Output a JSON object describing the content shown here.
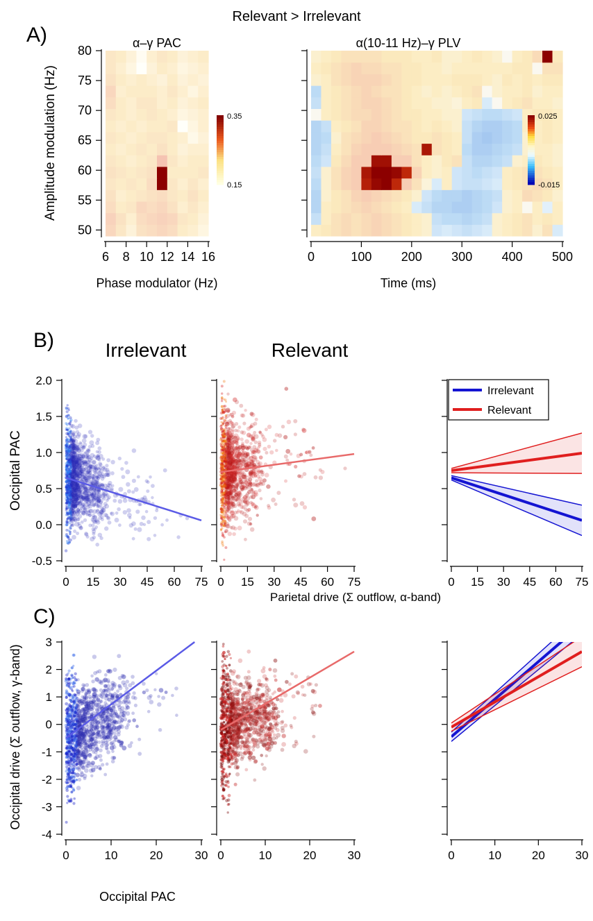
{
  "figure": {
    "title": "Relevant > Irrelevant",
    "panel_a_label": "A)",
    "panel_b_label": "B)",
    "panel_c_label": "C)",
    "panel_b_shared_xlabel": "Parietal drive (Σ outflow, α-band)"
  },
  "chart_data": [
    {
      "id": "a1",
      "type": "heatmap",
      "title": "α–γ PAC",
      "xlabel": "Phase modulator (Hz)",
      "ylabel": "Amplitude modulation (Hz)",
      "xlim": [
        6,
        16
      ],
      "ylim": [
        49,
        80
      ],
      "xticks": [
        6,
        8,
        10,
        12,
        14,
        16
      ],
      "yticks": [
        50,
        55,
        60,
        65,
        70,
        75,
        80
      ],
      "colorbar": {
        "min_label": "0.15",
        "max_label": "0.35",
        "colormap": "yellow-red"
      },
      "rows_y": [
        50,
        52,
        54,
        56,
        58,
        60,
        62,
        64,
        66,
        68,
        70,
        72,
        74,
        76,
        78,
        80
      ],
      "cols_x": [
        6,
        7,
        8,
        9,
        10,
        11,
        12,
        13,
        14,
        15
      ],
      "cells": [
        [
          0.25,
          0.22,
          0.19,
          0.23,
          0.24,
          0.25,
          0.24,
          0.21,
          0.2,
          0.18
        ],
        [
          0.26,
          0.23,
          0.2,
          0.24,
          0.25,
          0.26,
          0.25,
          0.22,
          0.21,
          0.19
        ],
        [
          0.24,
          0.21,
          0.22,
          0.25,
          0.24,
          0.25,
          0.23,
          0.2,
          0.22,
          0.2
        ],
        [
          0.23,
          0.2,
          0.21,
          0.22,
          0.23,
          0.24,
          0.22,
          0.21,
          0.23,
          0.21
        ],
        [
          0.22,
          0.21,
          0.22,
          0.21,
          0.24,
          0.35,
          0.22,
          0.2,
          0.22,
          0.2
        ],
        [
          0.23,
          0.22,
          0.21,
          0.22,
          0.23,
          0.35,
          0.21,
          0.21,
          0.21,
          0.22
        ],
        [
          0.22,
          0.21,
          0.2,
          0.21,
          0.22,
          0.28,
          0.22,
          0.2,
          0.21,
          0.21
        ],
        [
          0.21,
          0.2,
          0.21,
          0.22,
          0.21,
          0.23,
          0.21,
          0.19,
          0.2,
          0.2
        ],
        [
          0.22,
          0.21,
          0.2,
          0.21,
          0.22,
          0.22,
          0.21,
          0.2,
          0.17,
          0.19
        ],
        [
          0.21,
          0.2,
          0.21,
          0.2,
          0.21,
          0.21,
          0.22,
          0.15,
          0.18,
          0.2
        ],
        [
          0.22,
          0.21,
          0.2,
          0.21,
          0.22,
          0.21,
          0.2,
          0.18,
          0.19,
          0.2
        ],
        [
          0.24,
          0.21,
          0.2,
          0.22,
          0.22,
          0.2,
          0.21,
          0.19,
          0.2,
          0.21
        ],
        [
          0.25,
          0.2,
          0.21,
          0.21,
          0.21,
          0.2,
          0.22,
          0.2,
          0.18,
          0.2
        ],
        [
          0.23,
          0.21,
          0.2,
          0.21,
          0.2,
          0.19,
          0.21,
          0.19,
          0.2,
          0.19
        ],
        [
          0.22,
          0.2,
          0.18,
          0.15,
          0.19,
          0.21,
          0.2,
          0.18,
          0.19,
          0.2
        ],
        [
          0.22,
          0.21,
          0.19,
          0.16,
          0.2,
          0.22,
          0.21,
          0.19,
          0.2,
          0.21
        ]
      ]
    },
    {
      "id": "a2",
      "type": "heatmap",
      "title": "α(10-11 Hz)–γ PLV",
      "xlabel": "Time (ms)",
      "ylabel": "",
      "xlim": [
        0,
        500
      ],
      "ylim": [
        49,
        80
      ],
      "xticks": [
        0,
        100,
        200,
        300,
        400,
        500
      ],
      "yticks": [
        50,
        55,
        60,
        65,
        70,
        75,
        80
      ],
      "colorbar": {
        "min_label": "-0.015",
        "max_label": "0.025",
        "colormap": "blue-cyan-yellow-red"
      },
      "rows_y": [
        50,
        52,
        54,
        56,
        58,
        60,
        62,
        64,
        66,
        68,
        70,
        72,
        74,
        76,
        78,
        80
      ],
      "cols_x": [
        0,
        20,
        40,
        60,
        80,
        100,
        120,
        140,
        160,
        180,
        200,
        220,
        240,
        260,
        280,
        300,
        320,
        340,
        360,
        380,
        400,
        420,
        440,
        460,
        480
      ],
      "cells": [
        [
          0.004,
          0.005,
          0.006,
          0.007,
          0.006,
          0.007,
          0.008,
          0.007,
          0.006,
          0.005,
          0.004,
          0.003,
          -0.003,
          -0.002,
          -0.003,
          -0.004,
          -0.003,
          -0.002,
          0.003,
          0.004,
          0.005,
          0.006,
          0.003,
          0.006,
          -0.002
        ],
        [
          -0.004,
          0.004,
          0.006,
          0.007,
          0.006,
          0.007,
          0.008,
          0.007,
          0.006,
          0.005,
          0.004,
          0.003,
          -0.004,
          -0.005,
          -0.005,
          -0.006,
          -0.005,
          -0.004,
          0.003,
          0.004,
          0.005,
          0.006,
          0.004,
          0.005,
          0.004
        ],
        [
          -0.006,
          0.004,
          0.005,
          0.006,
          0.007,
          0.008,
          0.007,
          0.006,
          0.005,
          0.004,
          -0.002,
          -0.004,
          -0.006,
          -0.006,
          -0.007,
          -0.007,
          -0.006,
          -0.005,
          -0.003,
          0.003,
          0.004,
          0.0,
          0.004,
          -0.001,
          0.004
        ],
        [
          -0.006,
          0.003,
          0.005,
          0.006,
          0.008,
          0.009,
          0.008,
          0.007,
          0.006,
          0.005,
          0.003,
          -0.003,
          -0.005,
          -0.006,
          -0.006,
          -0.007,
          -0.006,
          -0.005,
          -0.004,
          0.003,
          0.004,
          0.007,
          0.006,
          0.005,
          0.003
        ],
        [
          -0.005,
          0.003,
          0.006,
          0.008,
          0.012,
          0.021,
          0.024,
          0.025,
          0.02,
          0.01,
          0.006,
          0.002,
          -0.002,
          0.004,
          -0.003,
          -0.004,
          -0.004,
          -0.003,
          -0.002,
          0.004,
          0.005,
          0.006,
          0.007,
          0.006,
          0.004
        ],
        [
          -0.004,
          0.003,
          0.006,
          0.008,
          0.012,
          0.022,
          0.025,
          0.025,
          0.024,
          0.02,
          0.008,
          0.004,
          0.003,
          0.004,
          -0.003,
          -0.004,
          -0.005,
          -0.004,
          -0.003,
          0.004,
          0.005,
          0.006,
          0.006,
          0.005,
          0.004
        ],
        [
          -0.005,
          -0.003,
          0.005,
          0.007,
          0.009,
          0.012,
          0.023,
          0.023,
          0.012,
          0.009,
          0.006,
          0.004,
          0.003,
          0.005,
          0.006,
          -0.004,
          -0.006,
          -0.006,
          -0.005,
          -0.004,
          0.003,
          0.004,
          0.005,
          0.004,
          0.003
        ],
        [
          -0.006,
          -0.004,
          0.004,
          0.006,
          0.008,
          0.009,
          0.01,
          0.009,
          0.008,
          0.007,
          0.006,
          0.022,
          0.006,
          0.005,
          0.004,
          -0.005,
          -0.007,
          -0.007,
          -0.006,
          -0.005,
          -0.004,
          0.003,
          0.004,
          0.004,
          0.003
        ],
        [
          -0.006,
          -0.005,
          0.003,
          0.006,
          0.007,
          0.008,
          0.009,
          0.008,
          0.007,
          0.006,
          0.005,
          0.005,
          0.006,
          0.005,
          0.004,
          -0.004,
          -0.007,
          -0.008,
          -0.007,
          -0.006,
          -0.005,
          0.003,
          0.004,
          0.005,
          0.004
        ],
        [
          -0.006,
          -0.004,
          0.004,
          0.005,
          0.006,
          0.008,
          0.008,
          0.007,
          0.006,
          0.006,
          0.005,
          0.004,
          0.005,
          0.004,
          0.003,
          -0.004,
          -0.006,
          -0.007,
          -0.007,
          -0.006,
          -0.005,
          0.004,
          0.004,
          0.005,
          0.004
        ],
        [
          0.0,
          0.004,
          0.005,
          0.006,
          0.007,
          0.007,
          0.008,
          0.007,
          0.006,
          0.005,
          0.005,
          0.004,
          0.004,
          0.003,
          0.003,
          -0.003,
          -0.004,
          -0.005,
          -0.005,
          -0.004,
          -0.003,
          0.004,
          0.005,
          0.005,
          0.004
        ],
        [
          -0.004,
          0.004,
          0.005,
          0.006,
          0.007,
          0.008,
          0.008,
          0.007,
          0.006,
          0.005,
          0.004,
          0.004,
          0.003,
          0.003,
          0.002,
          0.004,
          0.005,
          -0.002,
          0.0,
          0.004,
          0.005,
          0.006,
          0.004,
          0.004,
          0.003
        ],
        [
          -0.005,
          0.004,
          0.005,
          0.006,
          0.007,
          0.008,
          0.007,
          0.006,
          0.006,
          0.005,
          0.004,
          0.003,
          0.004,
          0.003,
          0.004,
          0.005,
          0.006,
          0.0,
          0.003,
          0.004,
          0.004,
          0.005,
          0.003,
          0.004,
          0.004
        ],
        [
          0.003,
          0.004,
          0.006,
          0.007,
          0.008,
          0.008,
          0.008,
          0.007,
          0.006,
          0.005,
          0.005,
          0.004,
          0.004,
          0.004,
          0.005,
          0.005,
          0.005,
          0.004,
          0.003,
          0.005,
          0.004,
          0.005,
          0.004,
          0.005,
          0.005
        ],
        [
          0.004,
          0.005,
          0.006,
          0.007,
          0.008,
          0.007,
          0.007,
          0.006,
          0.006,
          0.005,
          0.005,
          0.004,
          0.004,
          0.003,
          0.004,
          0.004,
          0.004,
          0.004,
          0.004,
          0.004,
          0.005,
          0.005,
          0.0,
          0.006,
          0.006
        ],
        [
          0.003,
          0.004,
          0.005,
          0.006,
          0.006,
          0.006,
          0.006,
          0.005,
          0.005,
          0.005,
          0.004,
          0.004,
          0.005,
          0.003,
          0.003,
          0.004,
          0.005,
          0.004,
          0.003,
          0.0,
          0.004,
          0.005,
          0.007,
          0.025,
          0.005
        ]
      ]
    },
    {
      "id": "b1",
      "type": "scatter",
      "title": "Irrelevant",
      "ylabel": "Occipital PAC",
      "xlim": [
        0,
        75
      ],
      "ylim": [
        -0.5,
        2.0
      ],
      "xticks": [
        0,
        15,
        30,
        45,
        60,
        75
      ],
      "yticks": [
        -0.5,
        0.0,
        0.5,
        1.0,
        1.5,
        2.0
      ],
      "ytick_labels": [
        "-0.5",
        "0.0",
        "0.5",
        "1.0",
        "1.5",
        "2.0"
      ],
      "point_color": "#1f2fd6",
      "point_count_approx": 2000,
      "point_mean_y": 0.6,
      "point_sd_y": 0.35,
      "fit_line": {
        "x": [
          0,
          75
        ],
        "y": [
          0.65,
          0.06
        ],
        "color": "#5a5ae6"
      }
    },
    {
      "id": "b2",
      "type": "scatter",
      "title": "Relevant",
      "xlim": [
        0,
        75
      ],
      "ylim": [
        -0.5,
        2.0
      ],
      "xticks": [
        0,
        15,
        30,
        45,
        60,
        75
      ],
      "point_color": "#d42020",
      "point_count_approx": 2000,
      "point_mean_y": 0.75,
      "point_sd_y": 0.38,
      "fit_line": {
        "x": [
          0,
          75
        ],
        "y": [
          0.73,
          0.98
        ],
        "color": "#e86a6a"
      }
    },
    {
      "id": "b3",
      "type": "line",
      "xlim": [
        0,
        75
      ],
      "ylim": [
        -0.5,
        2.0
      ],
      "xticks": [
        0,
        15,
        30,
        45,
        60,
        75
      ],
      "legend_placement": "top-left",
      "series": [
        {
          "name": "Irrelevant",
          "color": "#1414d2",
          "x": [
            0,
            75
          ],
          "y": [
            0.65,
            0.06
          ],
          "ci_low": [
            0.62,
            -0.15
          ],
          "ci_high": [
            0.68,
            0.27
          ]
        },
        {
          "name": "Relevant",
          "color": "#e01e1e",
          "x": [
            0,
            75
          ],
          "y": [
            0.75,
            0.99
          ],
          "ci_low": [
            0.72,
            0.71
          ],
          "ci_high": [
            0.78,
            1.27
          ]
        }
      ]
    },
    {
      "id": "c1",
      "type": "scatter",
      "xlabel": "Occipital PAC",
      "ylabel": "Occipital drive (Σ outflow, γ-band)",
      "xlim": [
        0,
        30
      ],
      "ylim": [
        -4,
        3
      ],
      "xticks": [
        0,
        10,
        20,
        30
      ],
      "yticks": [
        -4,
        -3,
        -2,
        -1,
        0,
        1,
        2,
        3
      ],
      "point_color": "#1f2fd6",
      "point_count_approx": 2000,
      "fit_line": {
        "x": [
          0,
          28.5
        ],
        "y": [
          -0.5,
          3.0
        ],
        "color": "#5a5ae6"
      }
    },
    {
      "id": "c2",
      "type": "scatter",
      "xlim": [
        0,
        30
      ],
      "ylim": [
        -4,
        3
      ],
      "xticks": [
        0,
        10,
        20,
        30
      ],
      "point_color": "#9a1414",
      "point_count_approx": 2000,
      "fit_line": {
        "x": [
          0,
          30
        ],
        "y": [
          -0.2,
          2.65
        ],
        "color": "#e86a6a"
      }
    },
    {
      "id": "c3",
      "type": "line",
      "xlim": [
        0,
        30
      ],
      "ylim": [
        -4,
        3
      ],
      "xticks": [
        0,
        10,
        20,
        30
      ],
      "series": [
        {
          "name": "Irrelevant",
          "color": "#1414d2",
          "x": [
            0,
            30
          ],
          "y": [
            -0.45,
            3.65
          ],
          "ci_low": [
            -0.62,
            3.3
          ],
          "ci_high": [
            -0.28,
            4.0
          ]
        },
        {
          "name": "Relevant",
          "color": "#e01e1e",
          "x": [
            0,
            30
          ],
          "y": [
            -0.1,
            2.65
          ],
          "ci_low": [
            -0.25,
            2.1
          ],
          "ci_high": [
            0.05,
            3.2
          ]
        }
      ]
    }
  ]
}
